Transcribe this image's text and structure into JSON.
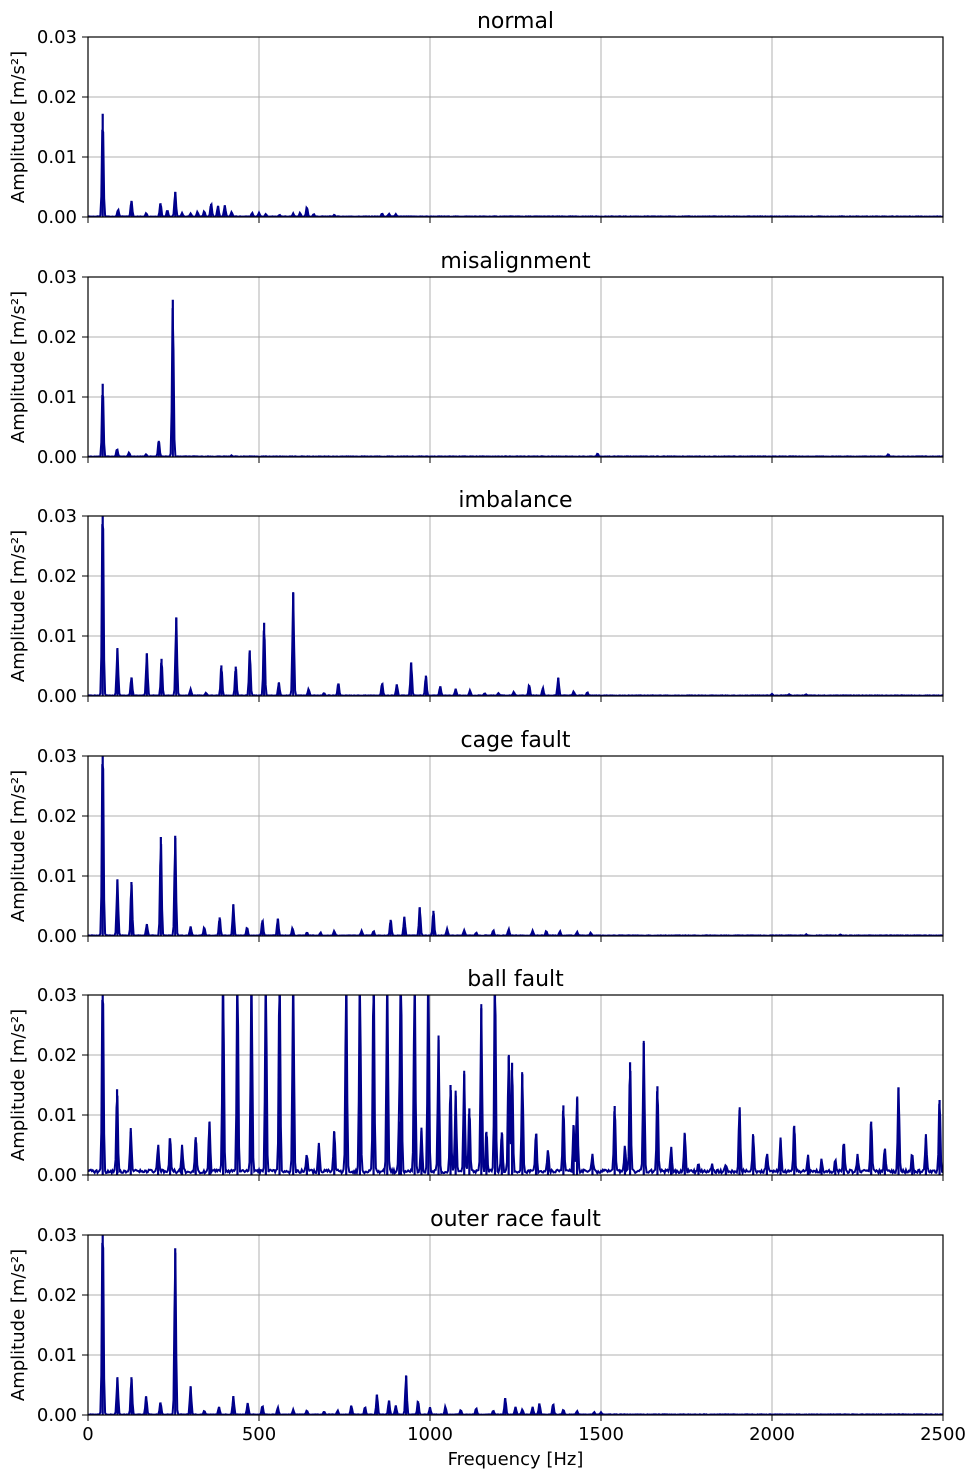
{
  "chart_data": [
    {
      "type": "line",
      "title": "normal",
      "ylabel": "Amplitude [m/s²]",
      "xlabel": "",
      "xlim": [
        0,
        2500
      ],
      "ylim": [
        0,
        0.03
      ],
      "xticks": [
        0,
        500,
        1000,
        1500,
        2000,
        2500
      ],
      "yticks": [
        "0.00",
        "0.01",
        "0.02",
        "0.03"
      ],
      "grid": true,
      "color": "#00008b",
      "peaks": [
        [
          43,
          0.0172
        ],
        [
          88,
          0.0012
        ],
        [
          127,
          0.0027
        ],
        [
          170,
          0.0006
        ],
        [
          212,
          0.0023
        ],
        [
          232,
          0.0011
        ],
        [
          255,
          0.0042
        ],
        [
          275,
          0.0006
        ],
        [
          300,
          0.0005
        ],
        [
          320,
          0.0008
        ],
        [
          340,
          0.0009
        ],
        [
          360,
          0.0022
        ],
        [
          380,
          0.0018
        ],
        [
          400,
          0.0019
        ],
        [
          420,
          0.0008
        ],
        [
          480,
          0.0006
        ],
        [
          500,
          0.0006
        ],
        [
          520,
          0.0004
        ],
        [
          560,
          0.0003
        ],
        [
          600,
          0.0005
        ],
        [
          620,
          0.0006
        ],
        [
          640,
          0.0016
        ],
        [
          660,
          0.0004
        ],
        [
          720,
          0.0003
        ],
        [
          860,
          0.0005
        ],
        [
          880,
          0.0005
        ],
        [
          900,
          0.0004
        ]
      ]
    },
    {
      "type": "line",
      "title": "misalignment",
      "ylabel": "Amplitude [m/s²]",
      "xlabel": "",
      "xlim": [
        0,
        2500
      ],
      "ylim": [
        0,
        0.03
      ],
      "xticks": [
        0,
        500,
        1000,
        1500,
        2000,
        2500
      ],
      "yticks": [
        "0.00",
        "0.01",
        "0.02",
        "0.03"
      ],
      "grid": true,
      "color": "#00008b",
      "peaks": [
        [
          43,
          0.0122
        ],
        [
          85,
          0.0013
        ],
        [
          120,
          0.0007
        ],
        [
          170,
          0.0004
        ],
        [
          207,
          0.0027
        ],
        [
          248,
          0.0262
        ],
        [
          420,
          0.0002
        ],
        [
          1490,
          0.0005
        ],
        [
          2340,
          0.0004
        ]
      ]
    },
    {
      "type": "line",
      "title": "imbalance",
      "ylabel": "Amplitude [m/s²]",
      "xlabel": "",
      "xlim": [
        0,
        2500
      ],
      "ylim": [
        0,
        0.03
      ],
      "xticks": [
        0,
        500,
        1000,
        1500,
        2000,
        2500
      ],
      "yticks": [
        "0.00",
        "0.01",
        "0.02",
        "0.03"
      ],
      "grid": true,
      "color": "#00008b",
      "peaks": [
        [
          43,
          0.034
        ],
        [
          86,
          0.0079
        ],
        [
          127,
          0.0031
        ],
        [
          172,
          0.0071
        ],
        [
          215,
          0.0062
        ],
        [
          258,
          0.0131
        ],
        [
          300,
          0.0011
        ],
        [
          345,
          0.0005
        ],
        [
          390,
          0.0051
        ],
        [
          432,
          0.0049
        ],
        [
          473,
          0.0076
        ],
        [
          515,
          0.0122
        ],
        [
          558,
          0.0022
        ],
        [
          600,
          0.0172
        ],
        [
          645,
          0.0011
        ],
        [
          690,
          0.0004
        ],
        [
          732,
          0.0021
        ],
        [
          860,
          0.0021
        ],
        [
          903,
          0.0019
        ],
        [
          945,
          0.0056
        ],
        [
          988,
          0.0034
        ],
        [
          1030,
          0.0016
        ],
        [
          1075,
          0.0011
        ],
        [
          1117,
          0.0009
        ],
        [
          1160,
          0.0004
        ],
        [
          1200,
          0.0004
        ],
        [
          1245,
          0.0006
        ],
        [
          1290,
          0.0018
        ],
        [
          1330,
          0.0013
        ],
        [
          1375,
          0.003
        ],
        [
          1420,
          0.0007
        ],
        [
          1460,
          0.0006
        ],
        [
          2000,
          0.0003
        ],
        [
          2050,
          0.0002
        ],
        [
          2100,
          0.0002
        ]
      ]
    },
    {
      "type": "line",
      "title": "cage fault",
      "ylabel": "Amplitude [m/s²]",
      "xlabel": "",
      "xlim": [
        0,
        2500
      ],
      "ylim": [
        0,
        0.03
      ],
      "xticks": [
        0,
        500,
        1000,
        1500,
        2000,
        2500
      ],
      "yticks": [
        "0.00",
        "0.01",
        "0.02",
        "0.03"
      ],
      "grid": true,
      "color": "#00008b",
      "peaks": [
        [
          43,
          0.034
        ],
        [
          86,
          0.0094
        ],
        [
          127,
          0.009
        ],
        [
          172,
          0.0019
        ],
        [
          213,
          0.0165
        ],
        [
          255,
          0.0167
        ],
        [
          300,
          0.0015
        ],
        [
          340,
          0.0014
        ],
        [
          385,
          0.0031
        ],
        [
          425,
          0.0052
        ],
        [
          465,
          0.0014
        ],
        [
          510,
          0.0026
        ],
        [
          555,
          0.0029
        ],
        [
          598,
          0.0013
        ],
        [
          640,
          0.0005
        ],
        [
          680,
          0.0005
        ],
        [
          720,
          0.0008
        ],
        [
          800,
          0.0008
        ],
        [
          835,
          0.0008
        ],
        [
          885,
          0.0027
        ],
        [
          925,
          0.0031
        ],
        [
          970,
          0.0048
        ],
        [
          1010,
          0.0042
        ],
        [
          1050,
          0.0011
        ],
        [
          1100,
          0.0009
        ],
        [
          1135,
          0.0005
        ],
        [
          1185,
          0.0009
        ],
        [
          1230,
          0.0011
        ],
        [
          1300,
          0.0008
        ],
        [
          1340,
          0.0008
        ],
        [
          1380,
          0.0007
        ],
        [
          1430,
          0.0006
        ],
        [
          1470,
          0.0005
        ],
        [
          2100,
          0.0002
        ],
        [
          2200,
          0.0002
        ]
      ]
    },
    {
      "type": "line",
      "title": "ball fault",
      "ylabel": "Amplitude [m/s²]",
      "xlabel": "",
      "xlim": [
        0,
        2500
      ],
      "ylim": [
        0,
        0.03
      ],
      "xticks": [
        0,
        500,
        1000,
        1500,
        2000,
        2500
      ],
      "yticks": [
        "0.00",
        "0.01",
        "0.02",
        "0.03"
      ],
      "grid": true,
      "color": "#00008b",
      "peaks": [
        [
          43,
          0.034
        ],
        [
          85,
          0.0143
        ],
        [
          125,
          0.0072
        ],
        [
          205,
          0.0044
        ],
        [
          240,
          0.0061
        ],
        [
          275,
          0.0042
        ],
        [
          315,
          0.0063
        ],
        [
          355,
          0.0088
        ],
        [
          395,
          0.034
        ],
        [
          437,
          0.034
        ],
        [
          478,
          0.034
        ],
        [
          520,
          0.034
        ],
        [
          560,
          0.034
        ],
        [
          600,
          0.034
        ],
        [
          640,
          0.0031
        ],
        [
          675,
          0.0048
        ],
        [
          720,
          0.0072
        ],
        [
          755,
          0.034
        ],
        [
          795,
          0.034
        ],
        [
          835,
          0.034
        ],
        [
          875,
          0.034
        ],
        [
          910,
          0.0089
        ],
        [
          915,
          0.034
        ],
        [
          955,
          0.034
        ],
        [
          975,
          0.0073
        ],
        [
          995,
          0.034
        ],
        [
          1025,
          0.0225
        ],
        [
          1060,
          0.015
        ],
        [
          1075,
          0.0132
        ],
        [
          1100,
          0.0168
        ],
        [
          1115,
          0.0111
        ],
        [
          1150,
          0.0278
        ],
        [
          1165,
          0.0072
        ],
        [
          1190,
          0.034
        ],
        [
          1210,
          0.0071
        ],
        [
          1230,
          0.0198
        ],
        [
          1240,
          0.0187
        ],
        [
          1270,
          0.0168
        ],
        [
          1310,
          0.0068
        ],
        [
          1345,
          0.0039
        ],
        [
          1390,
          0.0116
        ],
        [
          1420,
          0.0082
        ],
        [
          1430,
          0.0128
        ],
        [
          1475,
          0.0028
        ],
        [
          1540,
          0.0115
        ],
        [
          1570,
          0.0042
        ],
        [
          1585,
          0.0188
        ],
        [
          1625,
          0.022
        ],
        [
          1665,
          0.0148
        ],
        [
          1705,
          0.0042
        ],
        [
          1745,
          0.0068
        ],
        [
          1785,
          0.0015
        ],
        [
          1825,
          0.0012
        ],
        [
          1865,
          0.0012
        ],
        [
          1905,
          0.0108
        ],
        [
          1945,
          0.0065
        ],
        [
          1985,
          0.003
        ],
        [
          2025,
          0.0058
        ],
        [
          2065,
          0.0082
        ],
        [
          2105,
          0.0028
        ],
        [
          2145,
          0.002
        ],
        [
          2185,
          0.0018
        ],
        [
          2210,
          0.0052
        ],
        [
          2250,
          0.0028
        ],
        [
          2290,
          0.0089
        ],
        [
          2330,
          0.0042
        ],
        [
          2370,
          0.0146
        ],
        [
          2410,
          0.0032
        ],
        [
          2450,
          0.0062
        ],
        [
          2490,
          0.0125
        ]
      ]
    },
    {
      "type": "line",
      "title": "outer race fault",
      "ylabel": "Amplitude [m/s²]",
      "xlabel": "Frequency [Hz]",
      "xlim": [
        0,
        2500
      ],
      "ylim": [
        0,
        0.03
      ],
      "xticks": [
        0,
        500,
        1000,
        1500,
        2000,
        2500
      ],
      "yticks": [
        "0.00",
        "0.01",
        "0.02",
        "0.03"
      ],
      "grid": true,
      "color": "#00008b",
      "peaks": [
        [
          43,
          0.034
        ],
        [
          86,
          0.0062
        ],
        [
          127,
          0.0063
        ],
        [
          170,
          0.0031
        ],
        [
          212,
          0.0021
        ],
        [
          255,
          0.0278
        ],
        [
          300,
          0.0047
        ],
        [
          340,
          0.0006
        ],
        [
          383,
          0.0013
        ],
        [
          425,
          0.0031
        ],
        [
          467,
          0.0019
        ],
        [
          510,
          0.0015
        ],
        [
          555,
          0.0012
        ],
        [
          600,
          0.0008
        ],
        [
          640,
          0.0007
        ],
        [
          690,
          0.0005
        ],
        [
          730,
          0.0007
        ],
        [
          770,
          0.0015
        ],
        [
          810,
          0.0013
        ],
        [
          845,
          0.0034
        ],
        [
          880,
          0.0024
        ],
        [
          900,
          0.0015
        ],
        [
          930,
          0.0066
        ],
        [
          965,
          0.0023
        ],
        [
          1000,
          0.0012
        ],
        [
          1045,
          0.0013
        ],
        [
          1090,
          0.0008
        ],
        [
          1135,
          0.0011
        ],
        [
          1185,
          0.0007
        ],
        [
          1220,
          0.0028
        ],
        [
          1250,
          0.0013
        ],
        [
          1270,
          0.0009
        ],
        [
          1300,
          0.0013
        ],
        [
          1320,
          0.0019
        ],
        [
          1360,
          0.0018
        ],
        [
          1390,
          0.0008
        ],
        [
          1430,
          0.0006
        ],
        [
          1480,
          0.0004
        ],
        [
          1500,
          0.0004
        ]
      ]
    }
  ]
}
